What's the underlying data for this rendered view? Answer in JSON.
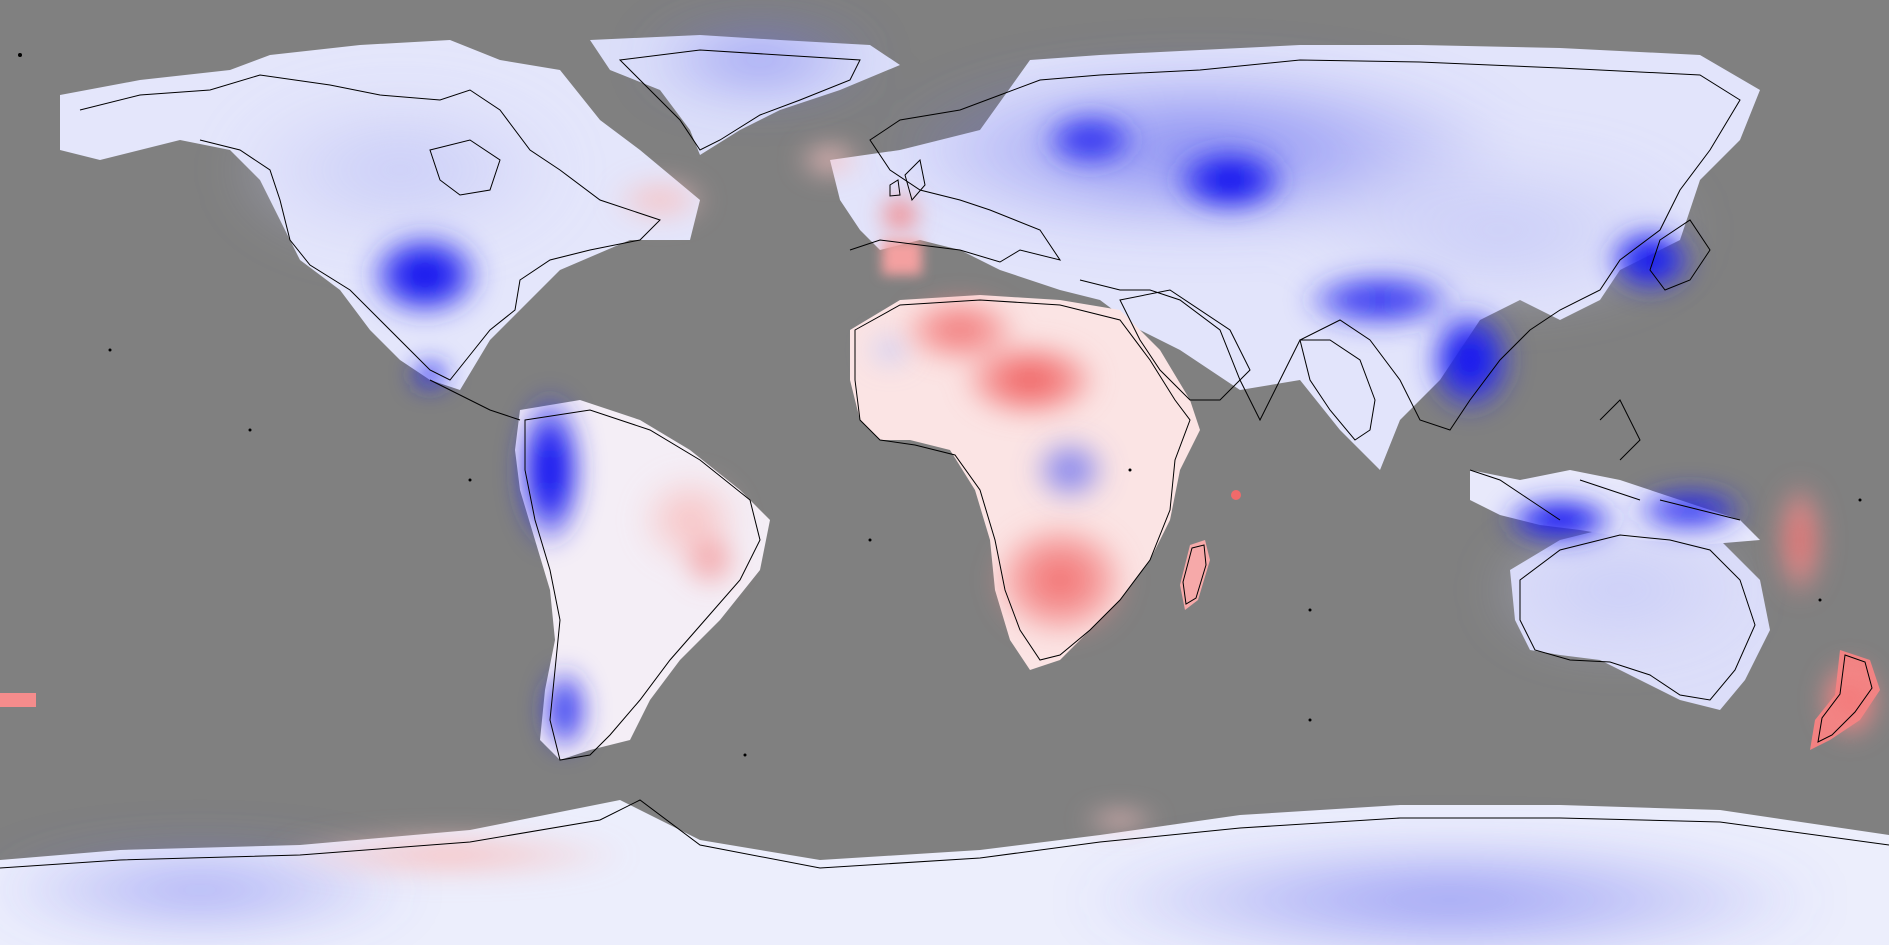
{
  "map": {
    "projection": "equirectangular",
    "ocean_color": "#808080",
    "coastline_color": "#000000",
    "color_scale": {
      "strong_cool": "#0000ee",
      "mid_cool": "#8a8ff0",
      "light_cool": "#dfe1fb",
      "neutral": "#ffffff",
      "light_warm": "#fbd8d8",
      "mid_warm": "#f59a9a",
      "strong_warm": "#ef5a5a"
    },
    "legend_visible": false,
    "title_visible": false
  }
}
